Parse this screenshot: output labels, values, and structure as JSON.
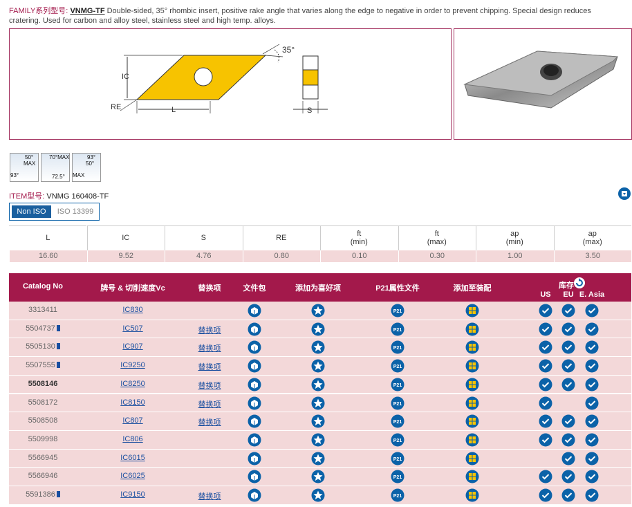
{
  "family": {
    "label": "FAMILY系列型号:",
    "code": "VNMG-TF",
    "description": "Double-sided, 35° rhombic insert, positive rake angle that varies along the edge to negative in order to prevent chipping. Special design reduces cratering. Used for carbon and alloy steel, stainless steel and high temp. alloys."
  },
  "diagram": {
    "angle": "35°",
    "ic": "IC",
    "re": "RE",
    "l": "L",
    "s": "S"
  },
  "icons": [
    [
      "50°",
      "MAX",
      "93°"
    ],
    [
      "70°MAX",
      "72.5°"
    ],
    [
      "93°",
      "50°",
      "MAX"
    ]
  ],
  "item": {
    "label": "ITEM型号:",
    "code": "VNMG 160408-TF"
  },
  "tabs": [
    "Non ISO",
    "ISO 13399"
  ],
  "specs": {
    "headers": [
      [
        "L"
      ],
      [
        "IC"
      ],
      [
        "S"
      ],
      [
        "RE"
      ],
      [
        "ft",
        "(min)"
      ],
      [
        "ft",
        "(max)"
      ],
      [
        "ap",
        "(min)"
      ],
      [
        "ap",
        "(max)"
      ]
    ],
    "values": [
      "16.60",
      "9.52",
      "4.76",
      "0.80",
      "0.10",
      "0.30",
      "1.00",
      "3.50"
    ]
  },
  "table": {
    "headers": [
      "Catalog No",
      "牌号 & 切削速度Vc",
      "替换项",
      "文件包",
      "添加为喜好项",
      "P21属性文件",
      "添加至装配"
    ],
    "stock": "库存",
    "regions": [
      "US",
      "EU",
      "E. Asia"
    ],
    "p21": "P21",
    "rows": [
      {
        "catalog": "3313411",
        "info": false,
        "grade": "IC830",
        "substitute": null,
        "stock": [
          true,
          true,
          true
        ]
      },
      {
        "catalog": "5504737",
        "info": true,
        "grade": "IC507",
        "substitute": "替换项",
        "stock": [
          true,
          true,
          true
        ]
      },
      {
        "catalog": "5505130",
        "info": true,
        "grade": "IC907",
        "substitute": "替换项",
        "stock": [
          true,
          true,
          true
        ]
      },
      {
        "catalog": "5507555",
        "info": true,
        "grade": "IC9250",
        "substitute": "替换项",
        "stock": [
          true,
          true,
          true
        ]
      },
      {
        "catalog": "5508146",
        "info": false,
        "grade": "IC8250",
        "substitute": "替换项",
        "stock": [
          true,
          true,
          true
        ]
      },
      {
        "catalog": "5508172",
        "info": false,
        "grade": "IC8150",
        "substitute": "替换项",
        "stock": [
          true,
          false,
          true
        ]
      },
      {
        "catalog": "5508508",
        "info": false,
        "grade": "IC807",
        "substitute": "替换项",
        "stock": [
          true,
          true,
          true
        ]
      },
      {
        "catalog": "5509998",
        "info": false,
        "grade": "IC806",
        "substitute": null,
        "stock": [
          true,
          true,
          true
        ]
      },
      {
        "catalog": "5566945",
        "info": false,
        "grade": "IC6015",
        "substitute": null,
        "stock": [
          false,
          true,
          true
        ]
      },
      {
        "catalog": "5566946",
        "info": false,
        "grade": "IC6025",
        "substitute": null,
        "stock": [
          true,
          true,
          true
        ]
      },
      {
        "catalog": "5591386",
        "info": true,
        "grade": "IC9150",
        "substitute": "替换项",
        "stock": [
          true,
          true,
          true
        ]
      }
    ]
  }
}
